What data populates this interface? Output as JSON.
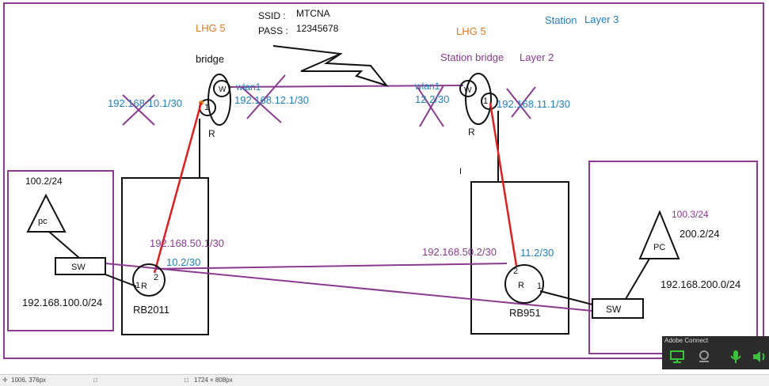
{
  "labels": {
    "ssid": "SSID :",
    "ssid_value": "MTCNA",
    "pass": "PASS :",
    "pass_value": "12345678",
    "lhg_left": "LHG 5",
    "lhg_right": "LHG 5",
    "bridge": "bridge",
    "station_bridge": "Station bridge",
    "layer2": "Layer 2",
    "station": "Station",
    "layer3": "Layer 3",
    "wlan1_left": "wlan1",
    "wlan1_right": "wlan1",
    "ip_10_1": "192.168.10.1/30",
    "ip_12_1": "192.168.12.1/30",
    "ip_12_2": "12.2/30",
    "ip_11_1": "192.168.11.1/30",
    "ip_50_1": "192.168.50.1/30",
    "ip_10_2": "10.2/30",
    "ip_50_2": "192.168.50.2/30",
    "ip_11_2": "11.2/30",
    "left_pc_ip": "100.2/24",
    "pc_left": "pc",
    "sw_left": "SW",
    "net_left": "192.168.100.0/24",
    "rb2011": "RB2011",
    "right_pc_ip1": "100.3/24",
    "right_pc_ip2": "200.2/24",
    "pc_right": "PC",
    "net_right": "192.168.200.0/24",
    "sw_right": "SW",
    "rb951": "RB951",
    "r": "R",
    "w": "W",
    "port1": "1",
    "port2": "2",
    "cursor_i": "I"
  },
  "statusbar": {
    "coords": "1006, 376px",
    "size": "1724 × 808px"
  },
  "adobe_connect": {
    "title": "Adobe Connect"
  },
  "colors": {
    "blue_label": "#1f7fbf",
    "purple_label": "#8a3b8f",
    "orange_label": "#e07a1f",
    "red_link": "#dd1f1f",
    "purple_link": "#8a3b8f"
  }
}
